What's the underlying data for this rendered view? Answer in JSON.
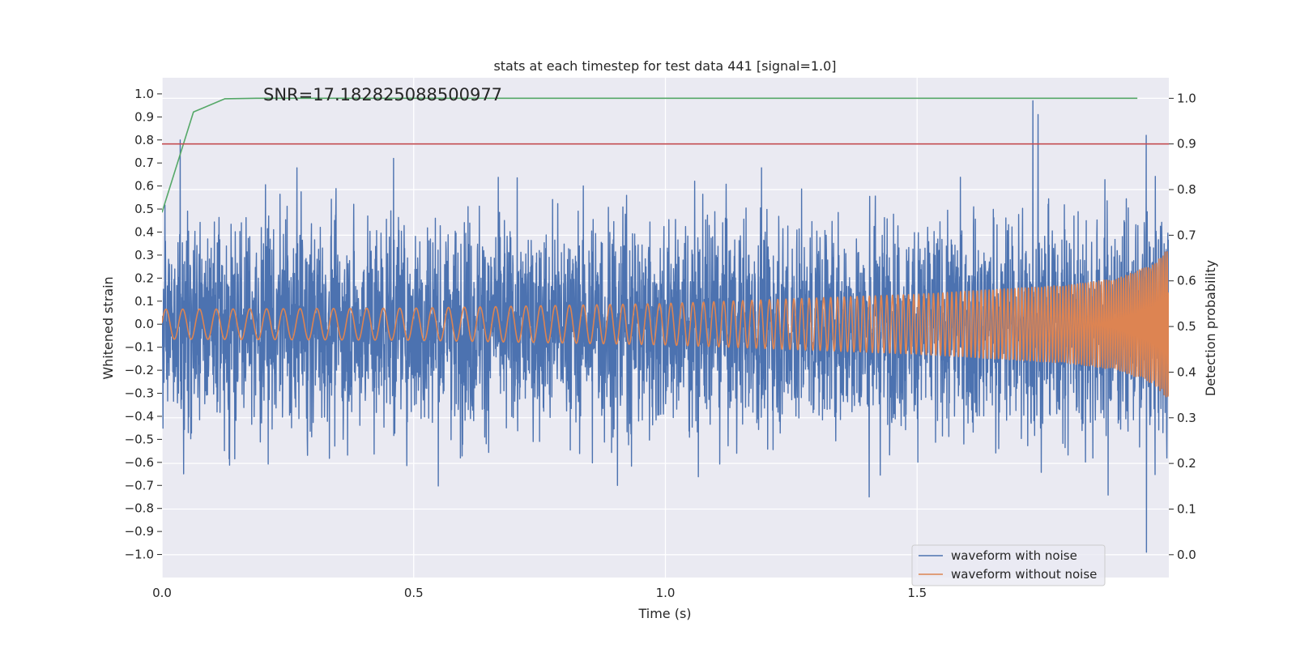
{
  "chart_data": {
    "type": "line",
    "title": "stats at each timestep for test data 441 [signal=1.0]",
    "xlabel": "Time (s)",
    "ylabel_left": "Whitened strain",
    "ylabel_right": "Detection probability",
    "annotation": "SNR=17.182825088500977",
    "xlim": [
      0,
      2.0
    ],
    "ylim_left": [
      -1.1,
      1.07
    ],
    "ylim_right": [
      -0.05,
      1.045
    ],
    "x_ticks": [
      0.0,
      0.5,
      1.0,
      1.5
    ],
    "x_tick_labels": [
      "0.0",
      "0.5",
      "1.0",
      "1.5"
    ],
    "y_left_ticks": [
      -1.0,
      -0.9,
      -0.8,
      -0.7,
      -0.6,
      -0.5,
      -0.4,
      -0.3,
      -0.2,
      -0.1,
      0.0,
      0.1,
      0.2,
      0.3,
      0.4,
      0.5,
      0.6,
      0.7,
      0.8,
      0.9,
      1.0
    ],
    "y_left_tick_labels": [
      "−1.0",
      "−0.9",
      "−0.8",
      "−0.7",
      "−0.6",
      "−0.5",
      "−0.4",
      "−0.3",
      "−0.2",
      "−0.1",
      "0.0",
      "0.1",
      "0.2",
      "0.3",
      "0.4",
      "0.5",
      "0.6",
      "0.7",
      "0.8",
      "0.9",
      "1.0"
    ],
    "y_right_ticks": [
      0.0,
      0.1,
      0.2,
      0.3,
      0.4,
      0.5,
      0.6,
      0.7,
      0.8,
      0.9,
      1.0
    ],
    "y_right_tick_labels": [
      "0.0",
      "0.1",
      "0.2",
      "0.3",
      "0.4",
      "0.5",
      "0.6",
      "0.7",
      "0.8",
      "0.9",
      "1.0"
    ],
    "grid": true,
    "legend_position": "lower-right",
    "series": [
      {
        "name": "waveform with noise",
        "color": "#4c72b0",
        "axis": "left",
        "kind": "noise",
        "sample_rate": 2048,
        "approx_std": 0.22,
        "approx_range": [
          -0.99,
          0.97
        ],
        "notable_points": [
          {
            "x": 0.036,
            "y": 0.8
          },
          {
            "x": 0.043,
            "y": -0.65
          },
          {
            "x": 0.46,
            "y": 0.72
          },
          {
            "x": 0.905,
            "y": -0.7
          },
          {
            "x": 1.405,
            "y": -0.75
          },
          {
            "x": 1.73,
            "y": 0.97
          },
          {
            "x": 1.74,
            "y": 0.91
          },
          {
            "x": 1.955,
            "y": 0.82
          },
          {
            "x": 1.955,
            "y": -0.99
          }
        ]
      },
      {
        "name": "waveform without noise",
        "color": "#dd8452",
        "axis": "left",
        "kind": "chirp",
        "start_frequency_hz": 30,
        "end_frequency_hz": 250,
        "amplitude_start": 0.065,
        "amplitude_end": 0.33,
        "envelope": [
          [
            0.0,
            0.065
          ],
          [
            0.5,
            0.07
          ],
          [
            1.0,
            0.09
          ],
          [
            1.5,
            0.13
          ],
          [
            1.8,
            0.17
          ],
          [
            1.9,
            0.2
          ],
          [
            1.97,
            0.26
          ],
          [
            2.0,
            0.33
          ]
        ]
      },
      {
        "name": "",
        "color": "#55a868",
        "axis": "right",
        "kind": "line",
        "x": [
          0.0,
          0.0625,
          0.125,
          0.1875,
          0.25,
          0.5,
          1.0,
          1.5,
          1.9375
        ],
        "y": [
          0.75,
          0.97,
          0.999,
          1.0,
          1.0,
          1.0,
          1.0,
          1.0,
          1.0
        ]
      },
      {
        "name": "",
        "color": "#c44e52",
        "axis": "right",
        "kind": "hline",
        "y": 0.9
      }
    ]
  }
}
